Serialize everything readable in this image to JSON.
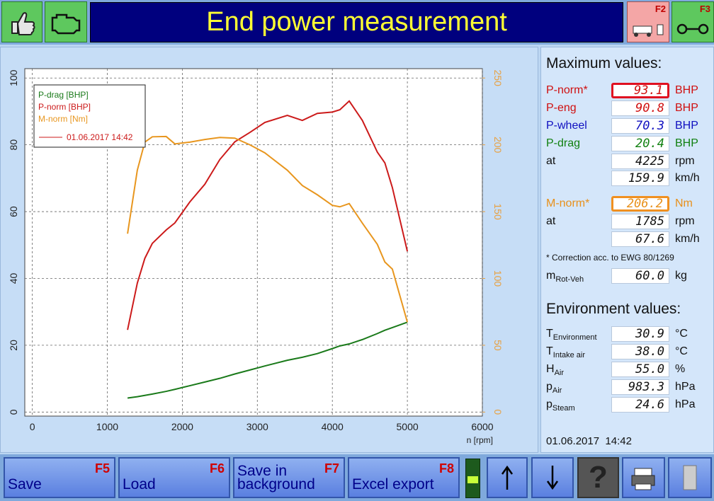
{
  "header": {
    "title": "End power measurement",
    "f2": "F2",
    "f3": "F3"
  },
  "chart_data": {
    "type": "line",
    "x": [
      1270,
      1400,
      1500,
      1600,
      1785,
      1900,
      2100,
      2300,
      2500,
      2700,
      2900,
      3100,
      3400,
      3600,
      3800,
      4000,
      4100,
      4225,
      4400,
      4600,
      4700,
      4800,
      5000
    ],
    "series": [
      {
        "name": "P-drag [BHP]",
        "color": "#1a7a1a",
        "values": [
          4.2,
          4.6,
          5,
          5.4,
          6.2,
          6.8,
          7.9,
          9,
          10.1,
          11.4,
          12.6,
          13.8,
          15.5,
          16.4,
          17.5,
          19,
          19.8,
          20.4,
          21.7,
          23.5,
          24.5,
          25.3,
          26.9
        ]
      },
      {
        "name": "P-norm [BHP]",
        "color": "#cc1a1a",
        "values": [
          24.6,
          38.6,
          46,
          50.5,
          54.5,
          56.6,
          62.9,
          68.2,
          75.6,
          80.9,
          83.7,
          86.7,
          88.8,
          87.3,
          89.4,
          89.8,
          90.5,
          93.1,
          87.3,
          77.8,
          74.6,
          67.2,
          48.1
        ]
      },
      {
        "name": "M-norm [Nm]",
        "color": "#e8961e",
        "axis": "y2",
        "values": [
          133.5,
          181,
          202,
          206,
          206.2,
          200.7,
          202,
          204,
          205.5,
          205,
          200,
          194,
          181,
          169.5,
          162.6,
          154.7,
          153.6,
          156,
          141.4,
          125.5,
          112.3,
          107,
          67.3
        ]
      }
    ],
    "x_label": "n [rpm]",
    "xlim": [
      -100,
      6000
    ],
    "xticks": [
      0,
      1000,
      2000,
      3000,
      4000,
      5000,
      6000
    ],
    "ylim": [
      -1.2,
      102.8
    ],
    "yticks": [
      0,
      20,
      40,
      60,
      80,
      100
    ],
    "y2lim": [
      -3,
      257
    ],
    "y2ticks": [
      0,
      50,
      100,
      150,
      200,
      250
    ],
    "y2_color": "#e8a040",
    "grid": true,
    "legend": "top-left",
    "annotation": "01.06.2017 14:42",
    "annotation_color": "#cc1a1a"
  },
  "max_values": {
    "title": "Maximum values:",
    "rows": [
      {
        "label": "P-norm*",
        "value": "93.1",
        "unit": "BHP",
        "color": "#d01010",
        "box": "#e01020"
      },
      {
        "label": "P-eng",
        "value": "90.8",
        "unit": "BHP",
        "color": "#d01010"
      },
      {
        "label": "P-wheel",
        "value": "70.3",
        "unit": "BHP",
        "color": "#1010c0"
      },
      {
        "label": "P-drag",
        "value": "20.4",
        "unit": "BHP",
        "color": "#108010"
      },
      {
        "label": "at",
        "value": "4225",
        "unit": "rpm"
      },
      {
        "value": "159.9",
        "unit": "km/h"
      },
      {
        "label": "M-norm*",
        "value": "206.2",
        "unit": "Nm",
        "color": "#e8901a",
        "box": "#f09020"
      },
      {
        "label": "at",
        "value": "1785",
        "unit": "rpm"
      },
      {
        "value": "67.6",
        "unit": "km/h"
      }
    ],
    "note": "* Correction acc. to EWG 80/1269",
    "mass": {
      "label": "m",
      "sub": "Rot-Veh",
      "value": "60.0",
      "unit": "kg"
    }
  },
  "environment": {
    "title": "Environment values:",
    "rows": [
      {
        "label": "T",
        "sub": "Environment",
        "value": "30.9",
        "unit": "°C"
      },
      {
        "label": "T",
        "sub": "Intake air",
        "value": "38.0",
        "unit": "°C"
      },
      {
        "label": "H",
        "sub": "Air",
        "value": "55.0",
        "unit": "%"
      },
      {
        "label": "p",
        "sub": "Air",
        "value": "983.3",
        "unit": "hPa"
      },
      {
        "label": "p",
        "sub": "Steam",
        "value": "24.6",
        "unit": "hPa"
      }
    ]
  },
  "timestamp": "01.06.2017  14:42",
  "buttons": [
    {
      "label": "Save",
      "key": "F5"
    },
    {
      "label": "Load",
      "key": "F6"
    },
    {
      "label": "Save in background",
      "key": "F7"
    },
    {
      "label": "Excel export",
      "key": "F8"
    }
  ],
  "toolbar": {
    "help": "?"
  }
}
